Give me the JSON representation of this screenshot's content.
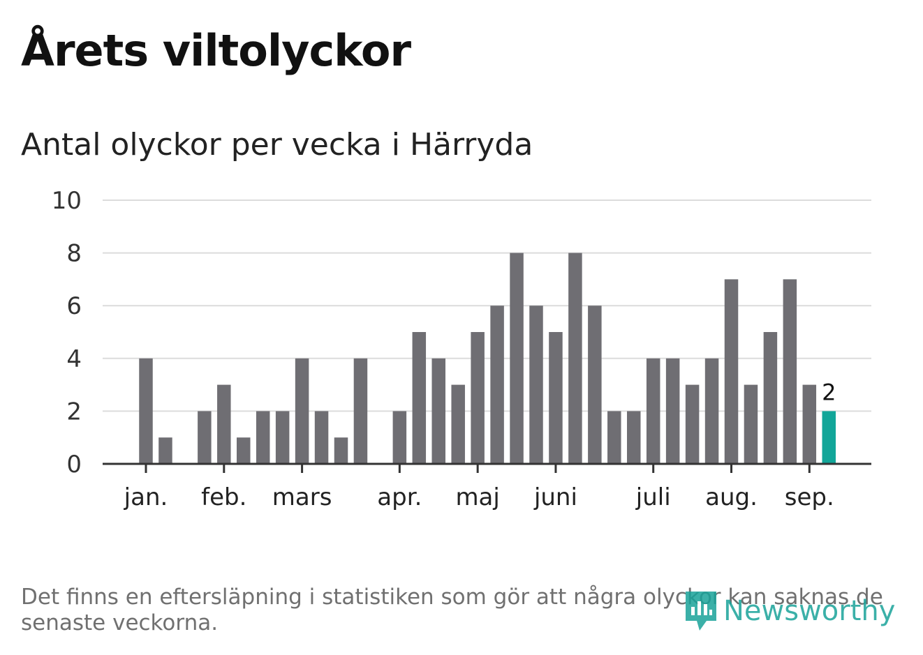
{
  "title": "Årets viltolyckor",
  "subtitle": "Antal olyckor per vecka i Härryda",
  "footnote": "Det finns en eftersläpning i statistiken som gör att några olyckor kan saknas de senaste veckorna.",
  "brand": {
    "name": "Newsworthy",
    "color": "#19a39a"
  },
  "chart_data": {
    "type": "bar",
    "ylim": [
      0,
      10
    ],
    "yticks": [
      0,
      2,
      4,
      6,
      8,
      10
    ],
    "grid": true,
    "bar_color": "#6f6e73",
    "highlight_color": "#12a699",
    "highlight_index": 35,
    "highlight_label": "2",
    "month_labels": [
      {
        "label": "jan.",
        "week": 1
      },
      {
        "label": "feb.",
        "week": 5
      },
      {
        "label": "mars",
        "week": 9
      },
      {
        "label": "apr.",
        "week": 14
      },
      {
        "label": "maj",
        "week": 18
      },
      {
        "label": "juni",
        "week": 22
      },
      {
        "label": "juli",
        "week": 27
      },
      {
        "label": "aug.",
        "week": 31
      },
      {
        "label": "sep.",
        "week": 35
      }
    ],
    "series": [
      {
        "values": [
          4,
          1,
          0,
          2,
          3,
          1,
          2,
          2,
          4,
          2,
          1,
          4,
          0,
          2,
          5,
          4,
          3,
          5,
          6,
          8,
          6,
          5,
          8,
          6,
          2,
          2,
          4,
          4,
          3,
          4,
          7,
          3,
          5,
          7,
          3,
          2
        ]
      }
    ]
  }
}
